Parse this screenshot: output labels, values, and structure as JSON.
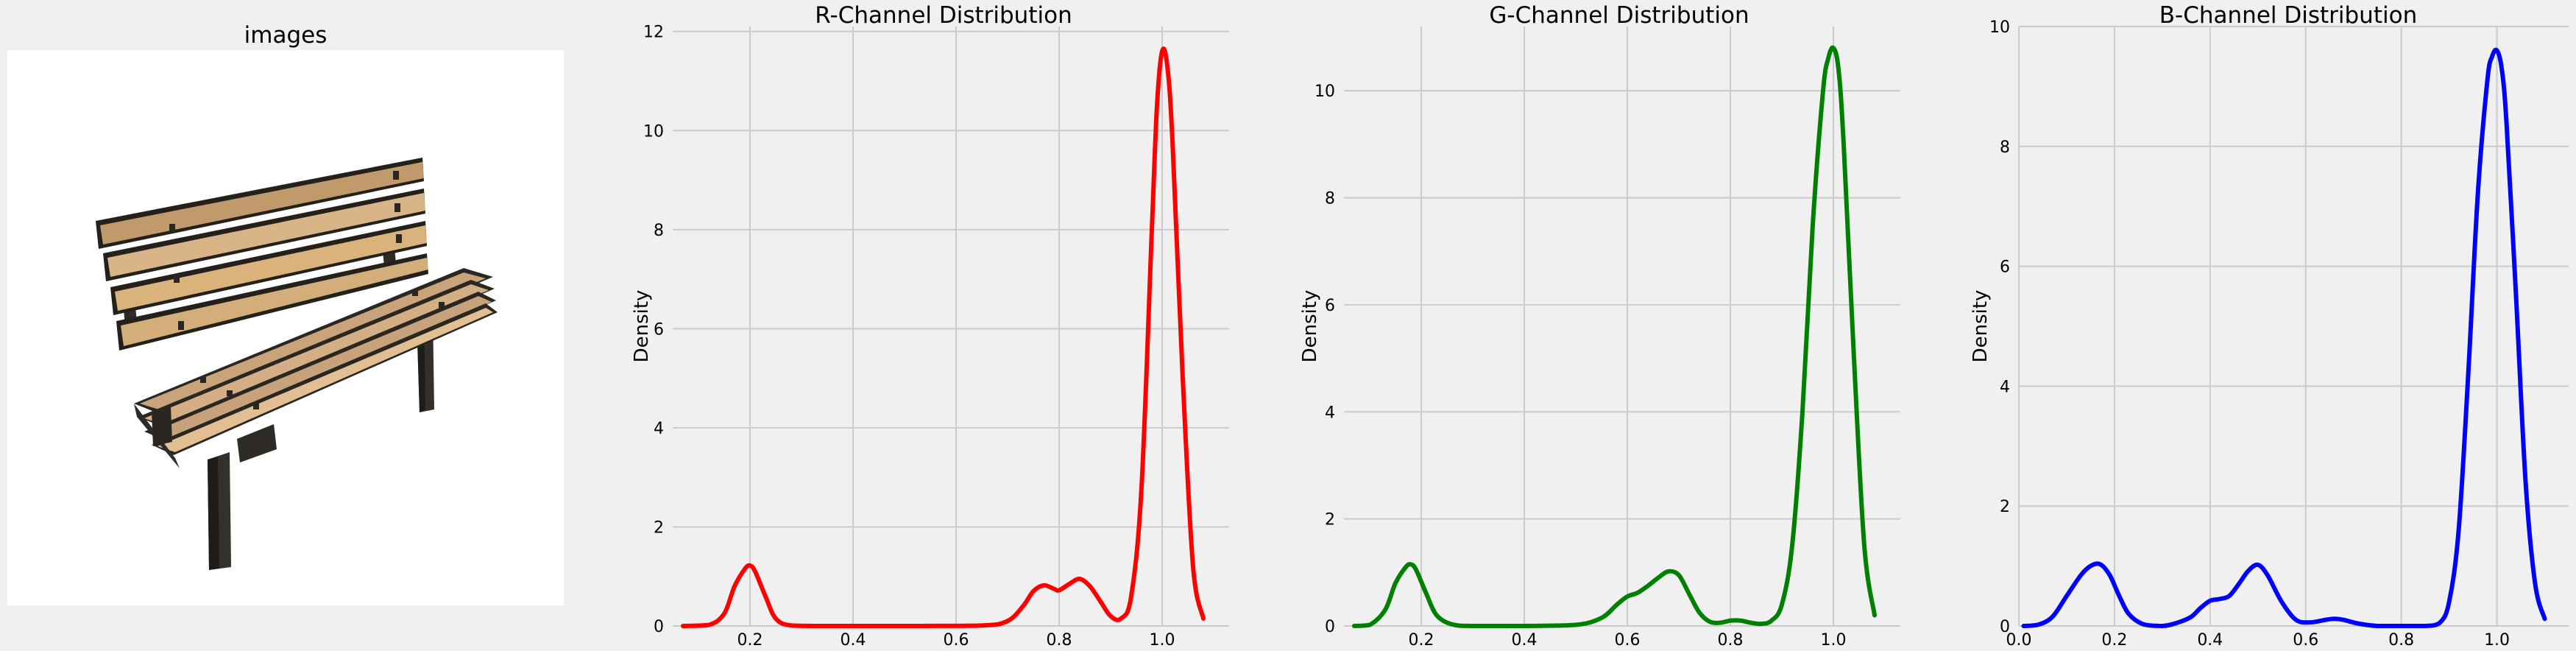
{
  "image_panel": {
    "title": "images"
  },
  "bench_icon": "park-bench",
  "chart_data": [
    {
      "type": "line",
      "title": "R-Channel Distribution",
      "xlabel": "",
      "ylabel": "Density",
      "color": "#ff0000",
      "xlim": [
        0.05,
        1.13
      ],
      "ylim": [
        0,
        12.1
      ],
      "xticks": [
        0.2,
        0.4,
        0.6,
        0.8,
        1.0
      ],
      "xtick_labels": [
        "0.2",
        "0.4",
        "0.6",
        "0.8",
        "1.0"
      ],
      "yticks": [
        0,
        2,
        4,
        6,
        8,
        10,
        12
      ],
      "ytick_labels": [
        "0",
        "2",
        "4",
        "6",
        "8",
        "10",
        "12"
      ],
      "grid": true,
      "x": [
        0.07,
        0.12,
        0.15,
        0.17,
        0.19,
        0.2,
        0.21,
        0.23,
        0.25,
        0.28,
        0.35,
        0.5,
        0.65,
        0.7,
        0.73,
        0.75,
        0.77,
        0.79,
        0.8,
        0.82,
        0.84,
        0.86,
        0.88,
        0.9,
        0.92,
        0.94,
        0.96,
        0.98,
        0.99,
        1.0,
        1.01,
        1.02,
        1.04,
        1.06,
        1.08
      ],
      "y": [
        0.0,
        0.02,
        0.25,
        0.8,
        1.15,
        1.22,
        1.1,
        0.6,
        0.15,
        0.01,
        0.0,
        0.0,
        0.01,
        0.1,
        0.4,
        0.7,
        0.82,
        0.75,
        0.72,
        0.85,
        0.95,
        0.8,
        0.5,
        0.2,
        0.15,
        0.6,
        2.8,
        8.0,
        10.5,
        11.6,
        11.3,
        9.8,
        5.0,
        1.2,
        0.15
      ]
    },
    {
      "type": "line",
      "title": "G-Channel Distribution",
      "xlabel": "",
      "ylabel": "Density",
      "color": "#008000",
      "xlim": [
        0.05,
        1.13
      ],
      "ylim": [
        0,
        11.2
      ],
      "xticks": [
        0.2,
        0.4,
        0.6,
        0.8,
        1.0
      ],
      "xtick_labels": [
        "0.2",
        "0.4",
        "0.6",
        "0.8",
        "1.0"
      ],
      "yticks": [
        0,
        2,
        4,
        6,
        8,
        10
      ],
      "ytick_labels": [
        "0",
        "2",
        "4",
        "6",
        "8",
        "10"
      ],
      "grid": true,
      "x": [
        0.07,
        0.1,
        0.13,
        0.15,
        0.17,
        0.18,
        0.19,
        0.21,
        0.23,
        0.26,
        0.3,
        0.4,
        0.5,
        0.55,
        0.58,
        0.6,
        0.62,
        0.64,
        0.66,
        0.68,
        0.7,
        0.72,
        0.74,
        0.76,
        0.78,
        0.8,
        0.82,
        0.84,
        0.86,
        0.88,
        0.9,
        0.92,
        0.94,
        0.96,
        0.98,
        0.99,
        1.0,
        1.01,
        1.02,
        1.04,
        1.06,
        1.08
      ],
      "y": [
        0.0,
        0.02,
        0.3,
        0.8,
        1.1,
        1.15,
        1.05,
        0.6,
        0.2,
        0.03,
        0.0,
        0.0,
        0.02,
        0.15,
        0.4,
        0.55,
        0.62,
        0.75,
        0.9,
        1.02,
        0.95,
        0.6,
        0.25,
        0.08,
        0.06,
        0.1,
        0.1,
        0.06,
        0.04,
        0.1,
        0.4,
        1.5,
        4.0,
        7.5,
        10.0,
        10.6,
        10.8,
        10.4,
        9.0,
        5.0,
        1.5,
        0.2
      ]
    },
    {
      "type": "line",
      "title": "B-Channel Distribution",
      "xlabel": "",
      "ylabel": "Density",
      "color": "#0000ff",
      "xlim": [
        0.0,
        1.15
      ],
      "ylim": [
        0,
        10.0
      ],
      "xticks": [
        0.0,
        0.2,
        0.4,
        0.6,
        0.8,
        1.0
      ],
      "xtick_labels": [
        "0.0",
        "0.2",
        "0.4",
        "0.6",
        "0.8",
        "1.0"
      ],
      "yticks": [
        0,
        2,
        4,
        6,
        8,
        10
      ],
      "ytick_labels": [
        "0",
        "2",
        "4",
        "6",
        "8",
        "10"
      ],
      "grid": true,
      "x": [
        0.01,
        0.04,
        0.07,
        0.1,
        0.13,
        0.15,
        0.17,
        0.19,
        0.21,
        0.23,
        0.26,
        0.3,
        0.33,
        0.36,
        0.38,
        0.4,
        0.42,
        0.44,
        0.46,
        0.48,
        0.5,
        0.52,
        0.55,
        0.58,
        0.61,
        0.64,
        0.66,
        0.68,
        0.71,
        0.75,
        0.8,
        0.85,
        0.88,
        0.9,
        0.92,
        0.94,
        0.96,
        0.98,
        0.99,
        1.0,
        1.01,
        1.02,
        1.04,
        1.06,
        1.08,
        1.1
      ],
      "y": [
        0.0,
        0.02,
        0.15,
        0.5,
        0.85,
        1.0,
        1.03,
        0.85,
        0.5,
        0.2,
        0.03,
        0.0,
        0.05,
        0.15,
        0.3,
        0.42,
        0.45,
        0.5,
        0.7,
        0.92,
        1.02,
        0.85,
        0.4,
        0.1,
        0.06,
        0.1,
        0.12,
        0.1,
        0.04,
        0.0,
        0.0,
        0.0,
        0.05,
        0.4,
        1.6,
        4.2,
        7.2,
        9.1,
        9.5,
        9.6,
        9.3,
        8.4,
        5.5,
        2.4,
        0.7,
        0.12
      ]
    }
  ]
}
